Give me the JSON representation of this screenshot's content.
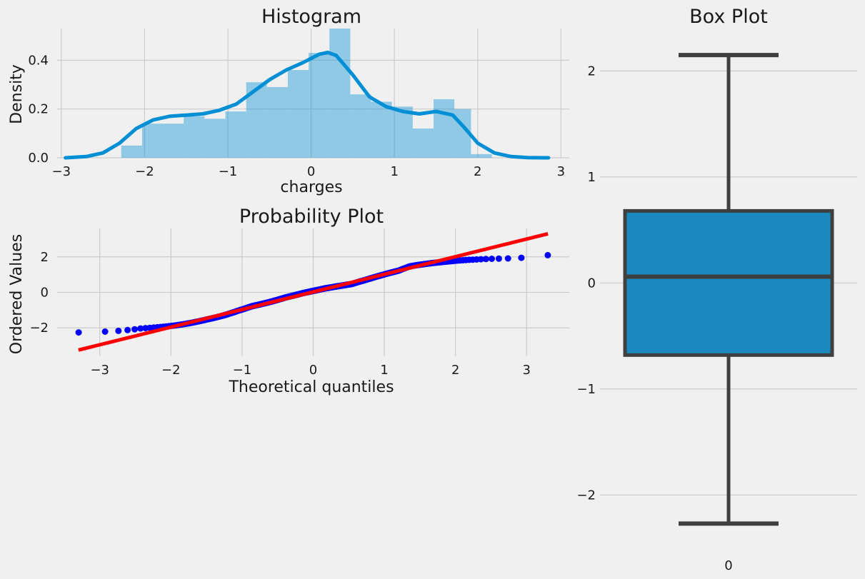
{
  "chart_data": [
    {
      "type": "bar",
      "subtype": "histogram-with-kde",
      "title": "Histogram",
      "xlabel": "charges",
      "ylabel": "Density",
      "xlim": [
        -3.05,
        3.1
      ],
      "ylim": [
        0,
        0.53
      ],
      "xticks": [
        -3,
        -2,
        -1,
        0,
        1,
        2,
        3
      ],
      "yticks": [
        0.0,
        0.2,
        0.4
      ],
      "bin_edges": [
        -2.28,
        -2.03,
        -1.53,
        -1.28,
        -1.03,
        -0.78,
        -0.53,
        -0.28,
        -0.03,
        0.22,
        0.47,
        0.72,
        0.97,
        1.22,
        1.47,
        1.72,
        1.92,
        2.17
      ],
      "values": [
        0.05,
        0.14,
        0.17,
        0.16,
        0.19,
        0.31,
        0.29,
        0.36,
        0.43,
        0.53,
        0.26,
        0.23,
        0.21,
        0.12,
        0.24,
        0.2,
        0.015
      ],
      "kde": {
        "x": [
          -2.95,
          -2.7,
          -2.5,
          -2.3,
          -2.1,
          -1.9,
          -1.7,
          -1.5,
          -1.3,
          -1.1,
          -0.9,
          -0.7,
          -0.5,
          -0.3,
          -0.1,
          0.1,
          0.2,
          0.3,
          0.5,
          0.7,
          0.9,
          1.1,
          1.3,
          1.5,
          1.7,
          1.85,
          2.0,
          2.2,
          2.4,
          2.6,
          2.85
        ],
        "y": [
          0.0,
          0.005,
          0.02,
          0.06,
          0.12,
          0.155,
          0.17,
          0.175,
          0.18,
          0.195,
          0.22,
          0.27,
          0.32,
          0.36,
          0.39,
          0.425,
          0.432,
          0.42,
          0.34,
          0.25,
          0.21,
          0.19,
          0.18,
          0.19,
          0.175,
          0.12,
          0.06,
          0.02,
          0.005,
          0.001,
          0.0
        ]
      },
      "colors": {
        "bars": "#008fd5",
        "bars_alpha": "0.4",
        "kde": "#008fd5"
      }
    },
    {
      "type": "scatter",
      "subtype": "probability-plot",
      "title": "Probability Plot",
      "xlabel": "Theoretical quantiles",
      "ylabel": "Ordered Values",
      "xlim": [
        -3.6,
        3.6
      ],
      "ylim": [
        -3.6,
        3.6
      ],
      "xticks": [
        -3,
        -2,
        -1,
        0,
        1,
        2,
        3
      ],
      "yticks": [
        -2,
        0,
        2
      ],
      "fit_line": {
        "x": [
          -3.3,
          3.3
        ],
        "y": [
          -3.25,
          3.3
        ]
      },
      "colors": {
        "points": "#0000ff",
        "line": "#ff0000"
      }
    },
    {
      "type": "box",
      "title": "Box Plot",
      "category": "0",
      "ylim": [
        -2.55,
        2.4
      ],
      "yticks": [
        -2,
        -1,
        0,
        1,
        2
      ],
      "whisker_low": -2.27,
      "q1": -0.68,
      "median": 0.06,
      "q3": 0.68,
      "whisker_high": 2.15,
      "colors": {
        "box": "#1b88bf",
        "lines": "#3f3f3f"
      }
    }
  ]
}
